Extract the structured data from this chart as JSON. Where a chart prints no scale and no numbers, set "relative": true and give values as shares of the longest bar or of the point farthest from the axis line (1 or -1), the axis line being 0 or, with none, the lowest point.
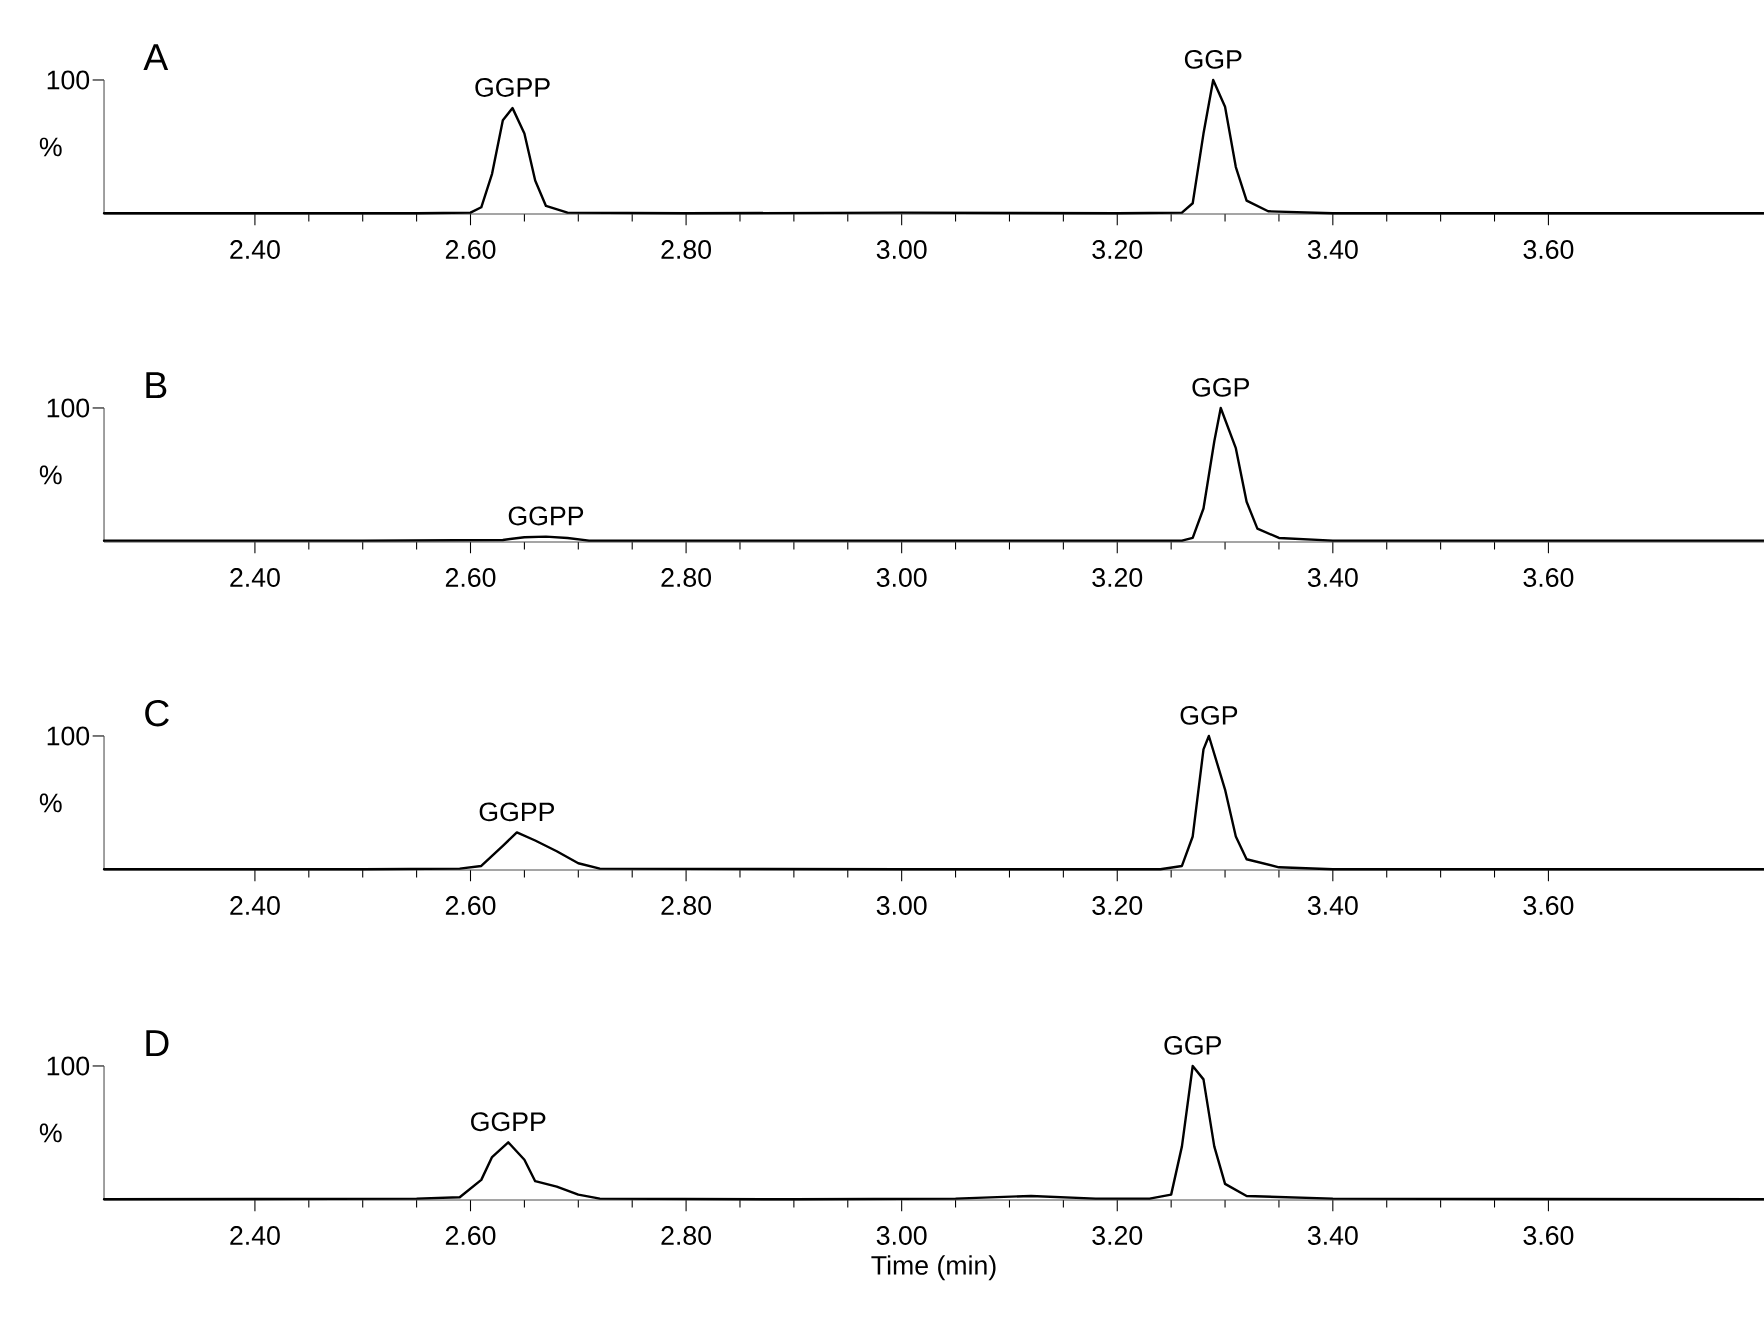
{
  "chart_data": [
    {
      "type": "line",
      "title": "A",
      "ylabel": "%",
      "relative": true,
      "xlim": [
        2.26,
        3.8
      ],
      "xticks": [
        {
          "value": 2.4,
          "label": "2.40"
        },
        {
          "value": 2.6,
          "label": "2.60"
        },
        {
          "value": 2.8,
          "label": "2.80"
        },
        {
          "value": 3.0,
          "label": "3.00"
        },
        {
          "value": 3.2,
          "label": "3.20"
        },
        {
          "value": 3.4,
          "label": "3.40"
        },
        {
          "value": 3.6,
          "label": "3.60"
        }
      ],
      "x": [
        2.26,
        2.4,
        2.55,
        2.6,
        2.61,
        2.62,
        2.63,
        2.639,
        2.65,
        2.66,
        2.67,
        2.69,
        2.8,
        3.0,
        3.2,
        3.26,
        3.27,
        3.28,
        3.289,
        3.3,
        3.31,
        3.32,
        3.34,
        3.4,
        3.6,
        3.8
      ],
      "series": [
        {
          "color": "#000000",
          "values": [
            0.005,
            0.005,
            0.005,
            0.01,
            0.05,
            0.3,
            0.7,
            0.79,
            0.6,
            0.25,
            0.06,
            0.01,
            0.005,
            0.01,
            0.005,
            0.01,
            0.08,
            0.6,
            1,
            0.8,
            0.35,
            0.1,
            0.02,
            0.005,
            0.005,
            0.005
          ]
        }
      ],
      "annotations": [
        "100",
        {
          "text": "GGPP",
          "x": 2.639,
          "y": 0.79
        },
        {
          "text": "GGP",
          "x": 3.289,
          "y": 1
        }
      ]
    },
    {
      "type": "line",
      "title": "B",
      "ylabel": "%",
      "relative": true,
      "xlim": [
        2.26,
        3.8
      ],
      "xticks": [
        {
          "value": 2.4,
          "label": "2.40"
        },
        {
          "value": 2.6,
          "label": "2.60"
        },
        {
          "value": 2.8,
          "label": "2.80"
        },
        {
          "value": 3.0,
          "label": "3.00"
        },
        {
          "value": 3.2,
          "label": "3.20"
        },
        {
          "value": 3.4,
          "label": "3.40"
        },
        {
          "value": 3.6,
          "label": "3.60"
        }
      ],
      "x": [
        2.26,
        2.5,
        2.63,
        2.65,
        2.67,
        2.69,
        2.71,
        3.0,
        3.26,
        3.27,
        3.28,
        3.29,
        3.296,
        3.31,
        3.32,
        3.33,
        3.35,
        3.4,
        3.8
      ],
      "series": [
        {
          "color": "#000000",
          "values": [
            0.01,
            0.01,
            0.015,
            0.035,
            0.04,
            0.03,
            0.01,
            0.01,
            0.01,
            0.03,
            0.25,
            0.75,
            1,
            0.7,
            0.3,
            0.1,
            0.03,
            0.01,
            0.01
          ]
        }
      ],
      "annotations": [
        "100",
        {
          "text": "GGPP",
          "x": 2.67,
          "y": 0.04
        },
        {
          "text": "GGP",
          "x": 3.296,
          "y": 1
        }
      ]
    },
    {
      "type": "line",
      "title": "C",
      "ylabel": "%",
      "relative": true,
      "xlim": [
        2.26,
        3.8
      ],
      "xticks": [
        {
          "value": 2.4,
          "label": "2.40"
        },
        {
          "value": 2.6,
          "label": "2.60"
        },
        {
          "value": 2.8,
          "label": "2.80"
        },
        {
          "value": 3.0,
          "label": "3.00"
        },
        {
          "value": 3.2,
          "label": "3.20"
        },
        {
          "value": 3.4,
          "label": "3.40"
        },
        {
          "value": 3.6,
          "label": "3.60"
        }
      ],
      "x": [
        2.26,
        2.5,
        2.59,
        2.61,
        2.63,
        2.643,
        2.66,
        2.68,
        2.7,
        2.72,
        3.0,
        3.24,
        3.26,
        3.27,
        3.28,
        3.285,
        3.3,
        3.31,
        3.32,
        3.35,
        3.4,
        3.8
      ],
      "series": [
        {
          "color": "#000000",
          "values": [
            0.005,
            0.005,
            0.01,
            0.03,
            0.18,
            0.28,
            0.22,
            0.14,
            0.05,
            0.01,
            0.005,
            0.005,
            0.03,
            0.25,
            0.9,
            1,
            0.6,
            0.25,
            0.08,
            0.02,
            0.005,
            0.005
          ]
        }
      ],
      "annotations": [
        "100",
        {
          "text": "GGPP",
          "x": 2.643,
          "y": 0.28
        },
        {
          "text": "GGP",
          "x": 3.285,
          "y": 1
        }
      ]
    },
    {
      "type": "line",
      "title": "D",
      "ylabel": "%",
      "xlabel": "Time (min)",
      "relative": true,
      "xlim": [
        2.26,
        3.8
      ],
      "xticks": [
        {
          "value": 2.4,
          "label": "2.40"
        },
        {
          "value": 2.6,
          "label": "2.60"
        },
        {
          "value": 2.8,
          "label": "2.80"
        },
        {
          "value": 3.0,
          "label": "3.00"
        },
        {
          "value": 3.2,
          "label": "3.20"
        },
        {
          "value": 3.4,
          "label": "3.40"
        },
        {
          "value": 3.6,
          "label": "3.60"
        }
      ],
      "x": [
        2.26,
        2.55,
        2.59,
        2.61,
        2.62,
        2.635,
        2.65,
        2.66,
        2.68,
        2.7,
        2.72,
        2.9,
        3.05,
        3.12,
        3.18,
        3.23,
        3.25,
        3.26,
        3.27,
        3.28,
        3.29,
        3.3,
        3.32,
        3.4,
        3.8
      ],
      "series": [
        {
          "color": "#000000",
          "values": [
            0.005,
            0.01,
            0.02,
            0.15,
            0.32,
            0.43,
            0.3,
            0.14,
            0.1,
            0.04,
            0.01,
            0.005,
            0.01,
            0.03,
            0.01,
            0.01,
            0.04,
            0.4,
            1,
            0.9,
            0.4,
            0.12,
            0.03,
            0.01,
            0.005
          ]
        }
      ],
      "annotations": [
        "100",
        {
          "text": "GGPP",
          "x": 2.635,
          "y": 0.43
        },
        {
          "text": "GGP",
          "x": 3.27,
          "y": 1
        }
      ]
    }
  ]
}
